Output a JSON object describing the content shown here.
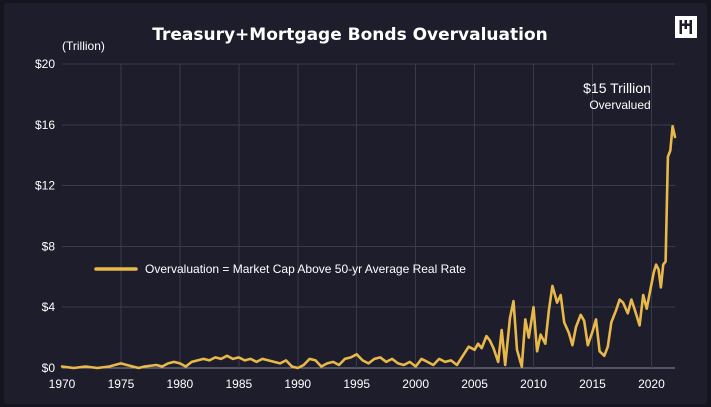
{
  "chart_data": {
    "type": "line",
    "title": "Treasury+Mortgage Bonds Overvaluation",
    "unit_label": "(Trillion)",
    "xlabel": "",
    "ylabel": "",
    "xlim": [
      1970,
      2022
    ],
    "ylim": [
      0,
      20
    ],
    "y_ticks": [
      {
        "value": 0,
        "label": "$0"
      },
      {
        "value": 4,
        "label": "$4"
      },
      {
        "value": 8,
        "label": "$8"
      },
      {
        "value": 12,
        "label": "$12"
      },
      {
        "value": 16,
        "label": "$16"
      },
      {
        "value": 20,
        "label": "$20"
      }
    ],
    "x_ticks": [
      {
        "value": 1970,
        "label": "1970"
      },
      {
        "value": 1975,
        "label": "1975"
      },
      {
        "value": 1980,
        "label": "1980"
      },
      {
        "value": 1985,
        "label": "1985"
      },
      {
        "value": 1990,
        "label": "1990"
      },
      {
        "value": 1995,
        "label": "1995"
      },
      {
        "value": 2000,
        "label": "2000"
      },
      {
        "value": 2005,
        "label": "2005"
      },
      {
        "value": 2010,
        "label": "2010"
      },
      {
        "value": 2015,
        "label": "2015"
      },
      {
        "value": 2020,
        "label": "2020"
      }
    ],
    "grid": true,
    "legend_position": "middle-left",
    "annotation": {
      "line1": "$15 Trillion",
      "line2": "Overvalued"
    },
    "series": [
      {
        "name": "Overvaluation = Market Cap Above 50-yr Average Real Rate",
        "color": "#e8b94a",
        "x": [
          1970.0,
          1971.0,
          1972.0,
          1973.0,
          1974.0,
          1975.0,
          1975.5,
          1976.0,
          1976.5,
          1977.0,
          1978.0,
          1978.5,
          1979.0,
          1979.5,
          1980.0,
          1980.5,
          1981.0,
          1981.5,
          1982.0,
          1982.5,
          1983.0,
          1983.5,
          1984.0,
          1984.5,
          1985.0,
          1985.5,
          1986.0,
          1986.5,
          1987.0,
          1987.5,
          1988.0,
          1988.5,
          1989.0,
          1989.5,
          1990.0,
          1990.5,
          1991.0,
          1991.5,
          1992.0,
          1992.5,
          1993.0,
          1993.5,
          1994.0,
          1994.5,
          1995.0,
          1995.5,
          1996.0,
          1996.5,
          1997.0,
          1997.5,
          1998.0,
          1998.5,
          1999.0,
          1999.5,
          2000.0,
          2000.5,
          2001.0,
          2001.5,
          2002.0,
          2002.5,
          2003.0,
          2003.5,
          2004.0,
          2004.5,
          2005.0,
          2005.3,
          2005.6,
          2006.0,
          2006.3,
          2006.6,
          2007.0,
          2007.3,
          2007.6,
          2008.0,
          2008.3,
          2008.6,
          2009.0,
          2009.3,
          2009.6,
          2010.0,
          2010.3,
          2010.6,
          2011.0,
          2011.3,
          2011.6,
          2012.0,
          2012.3,
          2012.6,
          2013.0,
          2013.3,
          2013.6,
          2014.0,
          2014.3,
          2014.6,
          2015.0,
          2015.3,
          2015.6,
          2016.0,
          2016.3,
          2016.6,
          2017.0,
          2017.3,
          2017.6,
          2018.0,
          2018.3,
          2018.6,
          2019.0,
          2019.3,
          2019.6,
          2020.0,
          2020.2,
          2020.4,
          2020.6,
          2020.8,
          2021.0,
          2021.2,
          2021.4,
          2021.6,
          2021.8,
          2022.0
        ],
        "y": [
          0.1,
          0.0,
          0.1,
          0.0,
          0.1,
          0.3,
          0.2,
          0.1,
          0.0,
          0.1,
          0.2,
          0.1,
          0.3,
          0.4,
          0.3,
          0.1,
          0.4,
          0.5,
          0.6,
          0.5,
          0.7,
          0.6,
          0.8,
          0.6,
          0.7,
          0.5,
          0.6,
          0.4,
          0.6,
          0.5,
          0.4,
          0.3,
          0.5,
          0.1,
          0.0,
          0.2,
          0.6,
          0.5,
          0.1,
          0.3,
          0.4,
          0.2,
          0.6,
          0.7,
          0.9,
          0.5,
          0.3,
          0.6,
          0.7,
          0.4,
          0.6,
          0.3,
          0.2,
          0.4,
          0.1,
          0.6,
          0.4,
          0.2,
          0.6,
          0.4,
          0.5,
          0.2,
          0.8,
          1.4,
          1.2,
          1.6,
          1.3,
          2.1,
          1.8,
          1.3,
          0.4,
          2.5,
          0.2,
          3.3,
          4.4,
          1.2,
          0.1,
          3.2,
          2.0,
          4.0,
          1.1,
          2.2,
          1.6,
          3.8,
          5.4,
          4.3,
          4.8,
          3.0,
          2.3,
          1.5,
          2.7,
          3.5,
          3.1,
          1.5,
          2.4,
          3.2,
          1.1,
          0.8,
          1.4,
          3.0,
          3.8,
          4.5,
          4.3,
          3.6,
          4.5,
          3.8,
          2.8,
          4.8,
          3.9,
          5.5,
          6.3,
          6.8,
          6.5,
          5.3,
          6.8,
          7.0,
          13.9,
          14.3,
          15.9,
          15.2
        ]
      }
    ]
  },
  "logo": {
    "icon": "pictet-like-bars-icon"
  }
}
